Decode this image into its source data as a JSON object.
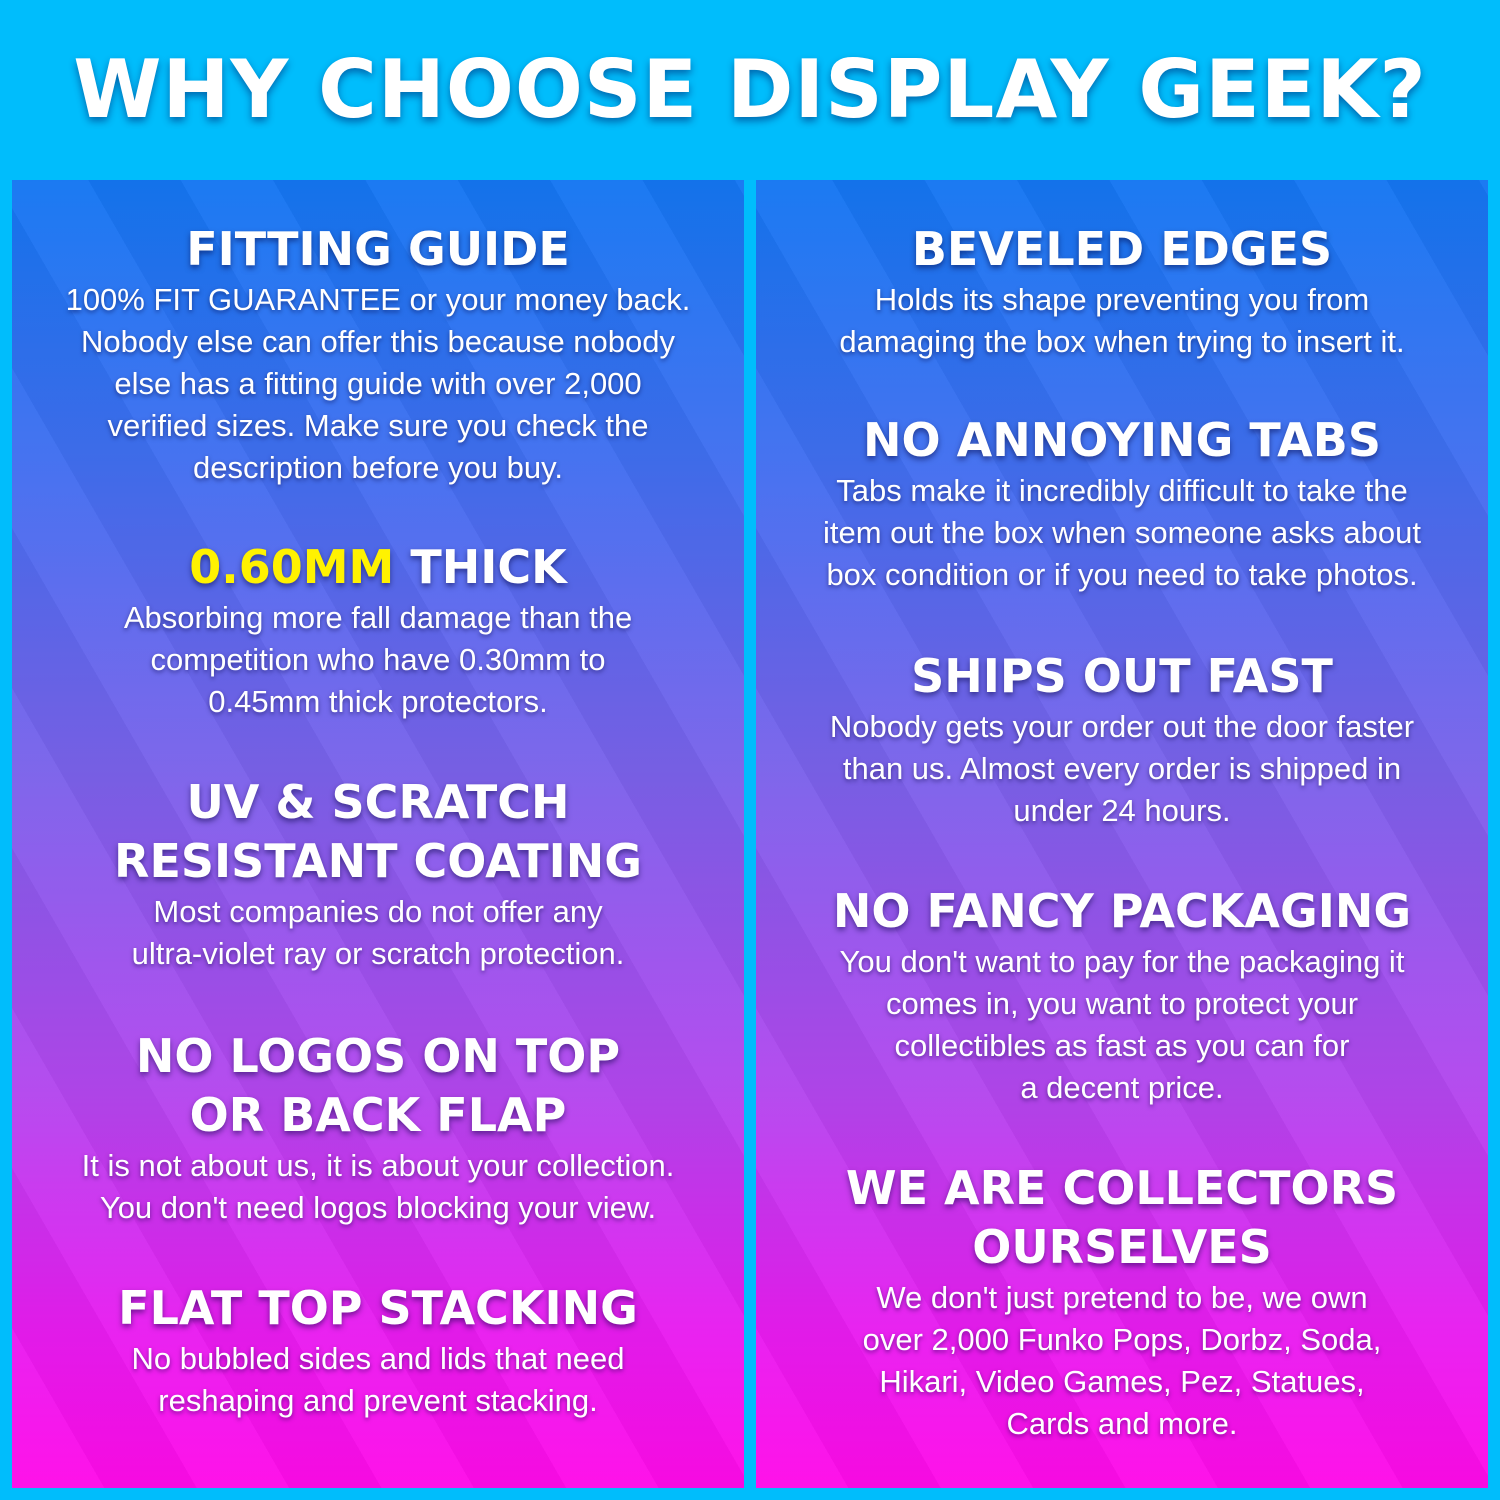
{
  "title": "WHY CHOOSE DISPLAY GEEK?",
  "colors": {
    "background": "#00bdfc",
    "panel_top": "#1476f2",
    "panel_bottom": "#ff0ae8",
    "highlight": "#fff200"
  },
  "left": [
    {
      "heading": [
        "FITTING GUIDE"
      ],
      "body": [
        "100% FIT GUARANTEE or your money back.",
        "Nobody else can offer this because nobody",
        "else has a fitting guide with over 2,000",
        "verified sizes. Make sure you check the",
        "description before you buy."
      ]
    },
    {
      "heading_highlight": "0.60MM",
      "heading": [
        " THICK"
      ],
      "body": [
        "Absorbing more fall damage than the",
        "competition who have 0.30mm to",
        "0.45mm thick protectors."
      ]
    },
    {
      "heading": [
        "UV & SCRATCH",
        "RESISTANT COATING"
      ],
      "body": [
        "Most companies do not offer any",
        "ultra-violet ray or scratch protection."
      ]
    },
    {
      "heading": [
        "NO LOGOS ON TOP",
        "OR BACK FLAP"
      ],
      "body": [
        "It is not about us, it is about your collection.",
        "You don't need logos blocking your view."
      ]
    },
    {
      "heading": [
        "FLAT TOP STACKING"
      ],
      "body": [
        "No bubbled sides and lids that need",
        "reshaping and prevent stacking."
      ]
    }
  ],
  "right": [
    {
      "heading": [
        "BEVELED EDGES"
      ],
      "body": [
        "Holds its shape preventing you from",
        "damaging the box when trying to insert it."
      ]
    },
    {
      "heading": [
        "NO ANNOYING TABS"
      ],
      "body": [
        "Tabs make it incredibly difficult to take the",
        "item out the box when someone asks about",
        "box condition or if you need to take photos."
      ]
    },
    {
      "heading": [
        "SHIPS OUT FAST"
      ],
      "body": [
        "Nobody gets your order out the door faster",
        "than us. Almost every order is shipped in",
        "under 24 hours."
      ]
    },
    {
      "heading": [
        "NO FANCY PACKAGING"
      ],
      "body": [
        "You don't want to pay for the packaging it",
        "comes in, you want to protect your",
        "collectibles as fast as you can for",
        "a decent price."
      ]
    },
    {
      "heading": [
        "WE ARE COLLECTORS",
        "OURSELVES"
      ],
      "body": [
        "We don't just pretend to be, we own",
        "over 2,000 Funko Pops, Dorbz, Soda,",
        "Hikari, Video Games, Pez, Statues,",
        "Cards and more."
      ]
    }
  ]
}
